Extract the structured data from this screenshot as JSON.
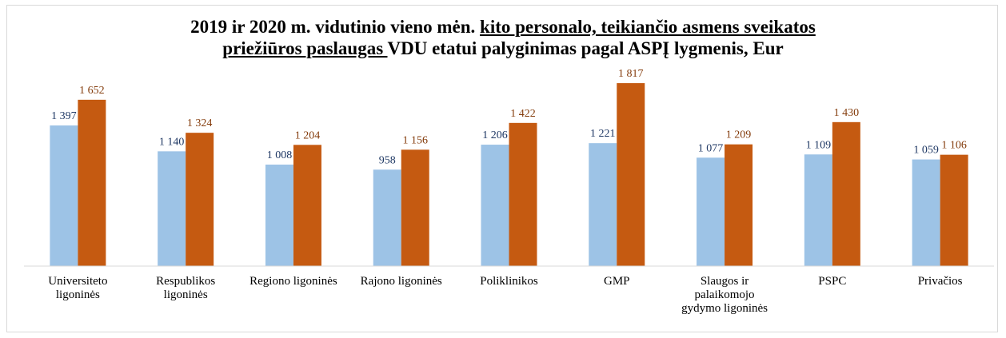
{
  "chart_data": {
    "type": "bar",
    "title_lines": [
      [
        {
          "text": "2019 ir 2020 m. vidutinio vieno mėn. ",
          "underline": false
        },
        {
          "text": "kito personalo, teikiančio asmens sveikatos",
          "underline": true
        }
      ],
      [
        {
          "text": "priežiūros paslaugas ",
          "underline": true
        },
        {
          "text": "VDU etatui palyginimas pagal ASPĮ lygmenis, Eur",
          "underline": false
        }
      ]
    ],
    "categories": [
      "Universiteto ligoninės",
      "Respublikos ligoninės",
      "Regiono ligoninės",
      "Rajono ligoninės",
      "Poliklinikos",
      "GMP",
      "Slaugos ir palaikomojo gydymo ligoninės",
      "PSPC",
      "Privačios"
    ],
    "series": [
      {
        "color": "#9dc3e6",
        "label_color": "#1f3864",
        "values": [
          1397,
          1140,
          1008,
          958,
          1206,
          1221,
          1077,
          1109,
          1059
        ],
        "value_labels": [
          "1 397",
          "1 140",
          "1 008",
          "958",
          "1 206",
          "1 221",
          "1 077",
          "1 109",
          "1 059"
        ]
      },
      {
        "color": "#c55a11",
        "label_color": "#843c0c",
        "values": [
          1652,
          1324,
          1204,
          1156,
          1422,
          1817,
          1209,
          1430,
          1106
        ],
        "value_labels": [
          "1 652",
          "1 324",
          "1 204",
          "1 156",
          "1 422",
          "1 817",
          "1 209",
          "1 430",
          "1 106"
        ]
      }
    ],
    "ylim": [
      0,
      2000
    ]
  }
}
